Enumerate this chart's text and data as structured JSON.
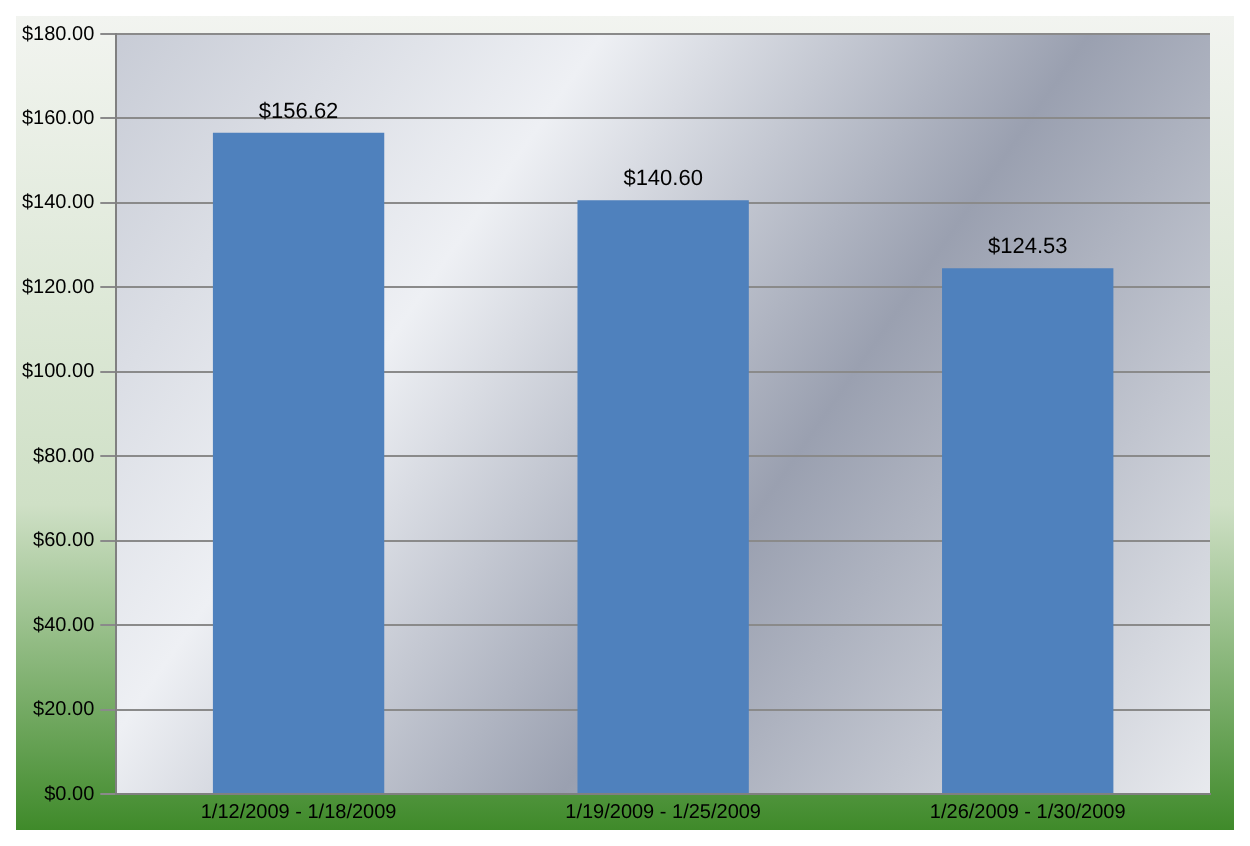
{
  "chart_data": {
    "type": "bar",
    "categories": [
      "1/12/2009 - 1/18/2009",
      "1/19/2009 - 1/25/2009",
      "1/26/2009 - 1/30/2009"
    ],
    "values": [
      156.62,
      140.6,
      124.53
    ],
    "color": "#4f81bd",
    "value_labels": [
      "$156.62",
      "$140.60",
      "$124.53"
    ],
    "ylim": [
      0,
      180
    ],
    "yticks": [
      {
        "value": 0,
        "label": "$0.00"
      },
      {
        "value": 20,
        "label": "$20.00"
      },
      {
        "value": 40,
        "label": "$40.00"
      },
      {
        "value": 60,
        "label": "$60.00"
      },
      {
        "value": 80,
        "label": "$80.00"
      },
      {
        "value": 100,
        "label": "$100.00"
      },
      {
        "value": 120,
        "label": "$120.00"
      },
      {
        "value": 140,
        "label": "$140.00"
      },
      {
        "value": 160,
        "label": "$160.00"
      },
      {
        "value": 180,
        "label": "$180.00"
      }
    ],
    "grid": "y",
    "legend": false
  }
}
